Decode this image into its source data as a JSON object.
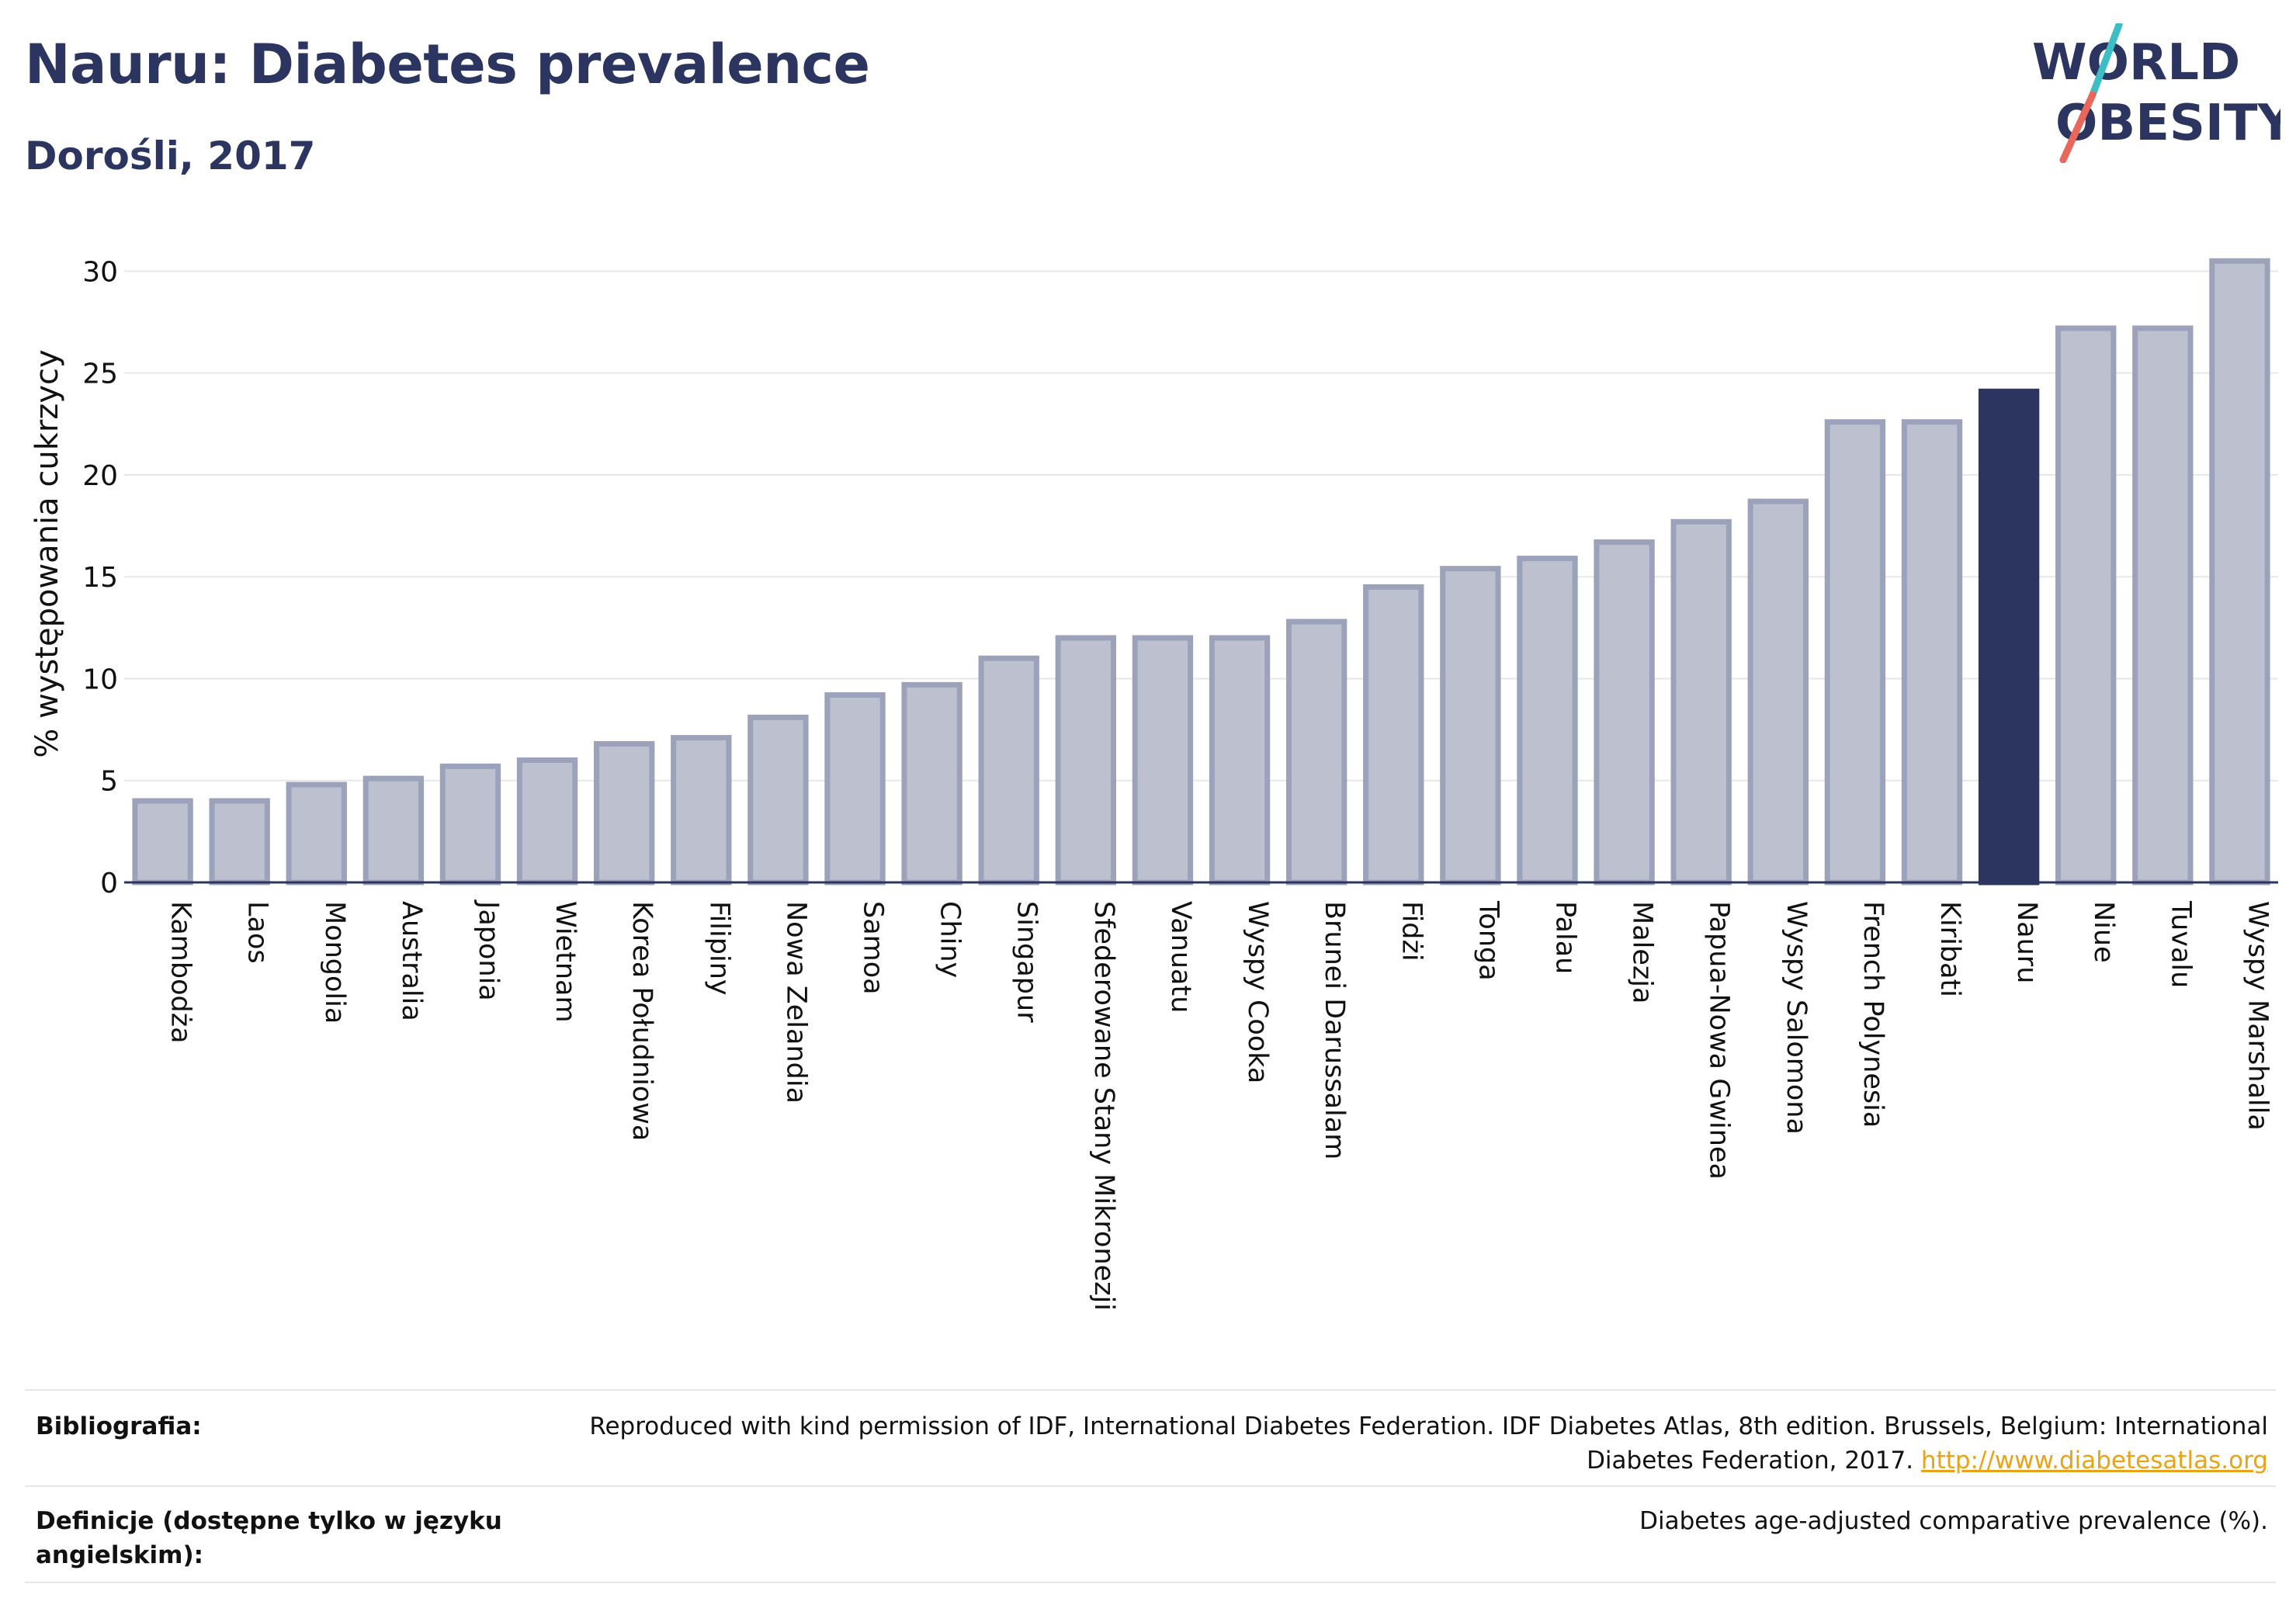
{
  "header": {
    "title": "Nauru: Diabetes prevalence",
    "subtitle": "Dorośli, 2017"
  },
  "logo": {
    "line1": "WORLD",
    "line2": "OBESITY",
    "slash_colors": [
      "#3dbec4",
      "#e8665a"
    ],
    "text_color": "#2b3560"
  },
  "chart_data": {
    "type": "bar",
    "title": "Nauru: Diabetes prevalence",
    "subtitle": "Dorośli, 2017",
    "xlabel": "",
    "ylabel": "% występowania cukrzycy",
    "ylim": [
      0,
      31.5
    ],
    "yticks": [
      0,
      5,
      10,
      15,
      20,
      25,
      30
    ],
    "grid": true,
    "highlight": "Nauru",
    "colors": {
      "bar": "#bcc0cf",
      "bar_edge": "#9ba2ba",
      "highlight": "#2b3560"
    },
    "categories": [
      "Kambodża",
      "Laos",
      "Mongolia",
      "Australia",
      "Japonia",
      "Wietnam",
      "Korea Południowa",
      "Filipiny",
      "Nowa Zelandia",
      "Samoa",
      "Chiny",
      "Singapur",
      "Sfederowane Stany Mikronezji",
      "Vanuatu",
      "Wyspy Cooka",
      "Brunei Darussalam",
      "Fidżi",
      "Tonga",
      "Palau",
      "Malezja",
      "Papua-Nowa Gwinea",
      "Wyspy Salomona",
      "French Polynesia",
      "Kiribati",
      "Nauru",
      "Niue",
      "Tuvalu",
      "Wyspy Marshalla"
    ],
    "values": [
      4.0,
      4.0,
      4.8,
      5.1,
      5.7,
      6.0,
      6.8,
      7.1,
      8.1,
      9.2,
      9.7,
      11.0,
      12.0,
      12.0,
      12.0,
      12.8,
      14.5,
      15.4,
      15.9,
      16.7,
      17.7,
      18.7,
      22.6,
      22.6,
      24.1,
      27.2,
      27.2,
      30.5
    ]
  },
  "footer": {
    "bibliography_label": "Bibliografia:",
    "bibliography_text": "Reproduced with kind permission of IDF, International Diabetes Federation. IDF Diabetes Atlas, 8th edition. Brussels, Belgium: International Diabetes Federation, 2017.",
    "bibliography_link": "http://www.diabetesatlas.org",
    "definitions_label": "Definicje (dostępne tylko w języku angielskim):",
    "definitions_text": "Diabetes age-adjusted comparative prevalence (%)."
  }
}
